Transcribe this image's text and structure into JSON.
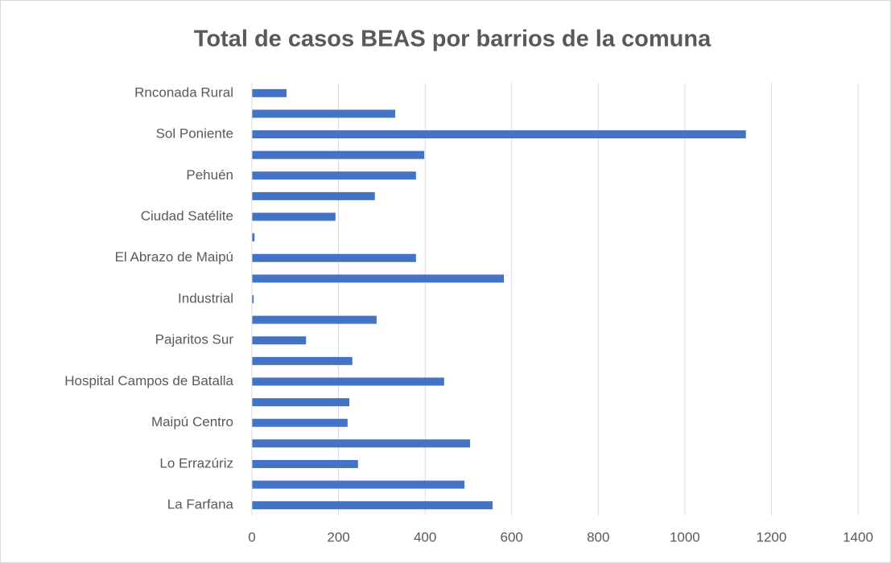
{
  "chart_data": {
    "type": "bar",
    "orientation": "horizontal",
    "title": "Total de casos BEAS por barrios de la comuna",
    "categories": [
      "La Farfana",
      null,
      "Lo Errazúriz",
      null,
      "Maipú Centro",
      null,
      "Hospital Campos de Batalla",
      null,
      "Pajaritos Sur",
      null,
      "Industrial",
      null,
      "El Abrazo de Maipú",
      null,
      "Ciudad Satélite",
      null,
      "Pehuén",
      null,
      "Sol Poniente",
      null,
      "Rnconada Rural"
    ],
    "values": [
      556,
      491,
      245,
      504,
      221,
      225,
      444,
      232,
      125,
      288,
      4,
      582,
      379,
      6,
      193,
      284,
      379,
      398,
      1141,
      331,
      80
    ],
    "color": "#4472c4",
    "xlim": [
      0,
      1400
    ],
    "xticks": [
      0,
      200,
      400,
      600,
      800,
      1000,
      1200,
      1400
    ],
    "grid": true
  }
}
